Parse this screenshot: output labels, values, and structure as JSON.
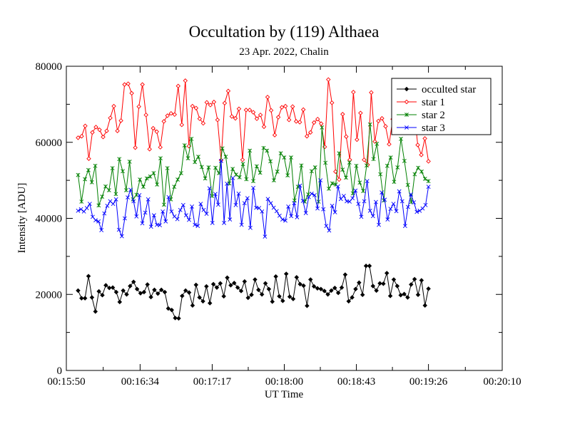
{
  "chart_data": {
    "type": "line",
    "title": "Occultation by (119) Althaea",
    "subtitle": "23 Apr. 2022, Chalin",
    "xlabel": "UT Time",
    "ylabel": "Intensity [ADU]",
    "x_ticks": [
      "00:15:50",
      "00:16:34",
      "00:17:17",
      "00:18:00",
      "00:18:43",
      "00:19:26",
      "00:20:10"
    ],
    "x_range": [
      "00:15:50",
      "00:20:10"
    ],
    "ylim": [
      0,
      80000
    ],
    "y_ticks": [
      0,
      20000,
      40000,
      60000,
      80000
    ],
    "grid": false,
    "legend_position": "top-right",
    "x_first": "00:15:57",
    "x_last": "00:19:26",
    "series": [
      {
        "name": "occulted star",
        "color": "#000000",
        "marker": "diamond-filled",
        "values": [
          21000,
          19000,
          19000,
          24800,
          19200,
          15500,
          20800,
          19800,
          22400,
          21700,
          21800,
          20600,
          18000,
          21000,
          20000,
          22200,
          23300,
          21400,
          20300,
          20600,
          22600,
          19300,
          21200,
          20200,
          21200,
          20600,
          16300,
          15900,
          13800,
          13700,
          19600,
          21000,
          20500,
          17100,
          22500,
          19200,
          18200,
          22100,
          17700,
          22700,
          21800,
          22900,
          19500,
          24400,
          22400,
          23000,
          21800,
          20900,
          23400,
          19100,
          19900,
          23900,
          21200,
          20000,
          22900,
          21400,
          18100,
          24700,
          19500,
          18300,
          25400,
          19400,
          18800,
          24500,
          22700,
          22300,
          17000,
          23900,
          22100,
          21600,
          21400,
          20900,
          20000,
          21000,
          21700,
          20400,
          21800,
          25200,
          18200,
          19200,
          21400,
          23100,
          19900,
          27500,
          27500,
          22200,
          21000,
          22900,
          22800,
          25600,
          19600,
          23900,
          22200,
          19800,
          20100,
          19200,
          22600,
          24000,
          19900,
          23700,
          17100,
          21500
        ]
      },
      {
        "name": "star 1",
        "color": "#ff0000",
        "marker": "diamond-open",
        "values": [
          61200,
          61600,
          64300,
          55700,
          62600,
          64000,
          63300,
          61400,
          63000,
          66400,
          69500,
          63000,
          65700,
          75200,
          75400,
          72900,
          58600,
          69400,
          75200,
          67200,
          58200,
          63700,
          62800,
          58700,
          65500,
          67000,
          67600,
          67300,
          74800,
          64600,
          76200,
          59000,
          69500,
          69000,
          66200,
          65000,
          70500,
          69800,
          70600,
          65900,
          55300,
          70300,
          73500,
          66800,
          66300,
          68800,
          55400,
          68500,
          68500,
          67900,
          66200,
          67200,
          64100,
          71900,
          68400,
          61900,
          66600,
          69200,
          69500,
          65900,
          69400,
          65500,
          65300,
          68600,
          61600,
          62600,
          65200,
          66100,
          64900,
          58800,
          76500,
          70400,
          52300,
          50200,
          67400,
          61500,
          55400,
          73200,
          60700,
          67700,
          55400,
          54100,
          73100,
          60200,
          65600,
          66300,
          64200,
          59500,
          66100,
          64100,
          70000,
          66600,
          67700,
          65400,
          68500,
          59300,
          56700,
          61000,
          55000
        ]
      },
      {
        "name": "star 2",
        "color": "#008000",
        "marker": "asterisk",
        "values": [
          51400,
          44400,
          50300,
          52700,
          49500,
          53800,
          43400,
          45700,
          48400,
          47400,
          53200,
          46400,
          55600,
          52400,
          47400,
          54900,
          45000,
          46200,
          50200,
          48300,
          50500,
          51000,
          51900,
          48900,
          55800,
          43600,
          53200,
          45000,
          48300,
          50200,
          51900,
          59200,
          55800,
          60900,
          54800,
          56200,
          53500,
          50500,
          53400,
          45900,
          53300,
          51900,
          58400,
          56200,
          49200,
          53000,
          51500,
          50800,
          54300,
          50300,
          57800,
          49800,
          53700,
          52000,
          58500,
          57800,
          55000,
          50000,
          52300,
          57100,
          56000,
          51300,
          56000,
          44700,
          48300,
          53900,
          44400,
          46300,
          52400,
          53400,
          44400,
          63900,
          54600,
          47800,
          49200,
          48900,
          57100,
          52800,
          50700,
          54700,
          46600,
          53800,
          49400,
          47200,
          53900,
          64700,
          55600,
          59600,
          51600,
          44700,
          53800,
          56000,
          49600,
          53400,
          60900,
          55100,
          48800,
          44300,
          51600,
          53300,
          52300,
          50400,
          49800
        ]
      },
      {
        "name": "star 3",
        "color": "#0000ff",
        "marker": "x",
        "values": [
          42000,
          42400,
          41800,
          42700,
          43800,
          40400,
          39500,
          39200,
          36900,
          41300,
          43300,
          44500,
          43800,
          45000,
          37000,
          35300,
          40000,
          45500,
          47500,
          44500,
          40500,
          46100,
          38700,
          41500,
          45000,
          37800,
          40800,
          38300,
          38200,
          41800,
          39200,
          45600,
          41800,
          40500,
          39800,
          42200,
          43500,
          40800,
          39600,
          43100,
          38300,
          38000,
          43800,
          42200,
          41200,
          47900,
          38800,
          46400,
          43600,
          55100,
          38800,
          49100,
          39700,
          50600,
          43500,
          46500,
          38300,
          44000,
          45300,
          37500,
          48000,
          42800,
          42700,
          41800,
          35200,
          45100,
          44000,
          42800,
          41900,
          40700,
          39700,
          39400,
          43100,
          40600,
          44000,
          40300,
          48600,
          44600,
          41400,
          45600,
          46500,
          46100,
          42600,
          50000,
          42400,
          38000,
          36800,
          43300,
          41600,
          48400,
          45100,
          45900,
          44500,
          44400,
          45300,
          47300,
          43800,
          40400,
          44500,
          49800,
          42000,
          40600,
          44300,
          38300,
          46800,
          44900,
          39700,
          42500,
          43800,
          41900,
          47100,
          44500,
          38000,
          43000,
          46300,
          44200,
          41700,
          42000,
          42600,
          43500,
          48300
        ]
      }
    ]
  }
}
